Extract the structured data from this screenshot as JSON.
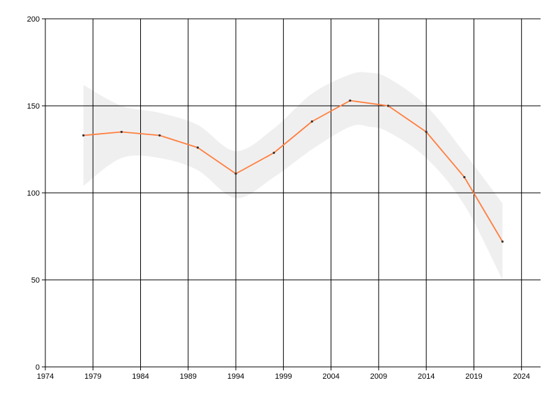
{
  "chart_data": {
    "type": "line",
    "title": "",
    "xlabel": "",
    "ylabel": "",
    "xlim": [
      1974,
      2026
    ],
    "ylim": [
      0,
      200
    ],
    "x_ticks": [
      1974,
      1979,
      1984,
      1989,
      1994,
      1999,
      2004,
      2009,
      2014,
      2019,
      2024
    ],
    "y_ticks": [
      0,
      50,
      100,
      150,
      200
    ],
    "grid": true,
    "legend": "none",
    "series": [
      {
        "x": [
          1978,
          1982,
          1986,
          1990,
          1994,
          1998,
          2002,
          2006,
          2010,
          2014,
          2018,
          2022
        ],
        "y": [
          133,
          135,
          133,
          126,
          111,
          123,
          141,
          153,
          150,
          135,
          109,
          72
        ],
        "color": "#ff7f3f"
      }
    ],
    "confidence_band": {
      "x": [
        1978,
        1982,
        1986,
        1990,
        1994,
        1998,
        2002,
        2006,
        2008,
        2010,
        2014,
        2018,
        2022
      ],
      "upper": [
        162,
        150,
        146,
        139,
        124,
        137,
        157,
        168,
        169,
        166,
        150,
        123,
        94
      ],
      "lower": [
        104,
        120,
        120,
        113,
        97,
        109,
        125,
        138,
        138,
        135,
        120,
        93,
        50
      ],
      "color": "#efefef"
    }
  }
}
